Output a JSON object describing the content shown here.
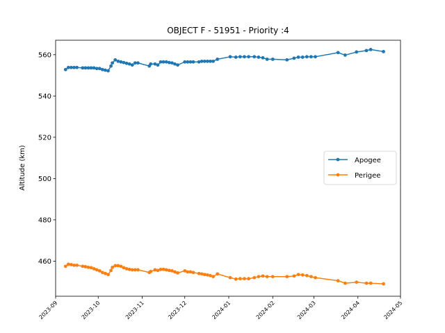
{
  "chart_data": {
    "type": "line",
    "title": "OBJECT F - 51951 - Priority :4",
    "xlabel": "",
    "ylabel": "Altitude (km)",
    "xlim": [
      "2023-09-01",
      "2024-05-01"
    ],
    "ylim": [
      443,
      567
    ],
    "x_ticks": [
      "2023-09",
      "2023-10",
      "2023-11",
      "2023-12",
      "2024-01",
      "2024-02",
      "2024-03",
      "2024-04",
      "2024-05"
    ],
    "y_ticks": [
      460,
      480,
      500,
      520,
      540,
      560
    ],
    "legend_position": "center-right",
    "grid": false,
    "series": [
      {
        "name": "Apogee",
        "color": "#1f77b4",
        "points": [
          [
            "2023-09-08",
            552.8
          ],
          [
            "2023-09-10",
            553.8
          ],
          [
            "2023-09-12",
            553.8
          ],
          [
            "2023-09-14",
            553.8
          ],
          [
            "2023-09-16",
            553.8
          ],
          [
            "2023-09-20",
            553.6
          ],
          [
            "2023-09-22",
            553.6
          ],
          [
            "2023-09-24",
            553.6
          ],
          [
            "2023-09-26",
            553.6
          ],
          [
            "2023-09-28",
            553.6
          ],
          [
            "2023-09-30",
            553.3
          ],
          [
            "2023-10-02",
            553.3
          ],
          [
            "2023-10-04",
            552.8
          ],
          [
            "2023-10-06",
            552.5
          ],
          [
            "2023-10-08",
            552.2
          ],
          [
            "2023-10-10",
            554.5
          ],
          [
            "2023-10-11",
            556.0
          ],
          [
            "2023-10-13",
            557.5
          ],
          [
            "2023-10-15",
            556.8
          ],
          [
            "2023-10-17",
            556.5
          ],
          [
            "2023-10-19",
            556.2
          ],
          [
            "2023-10-21",
            555.8
          ],
          [
            "2023-10-23",
            555.5
          ],
          [
            "2023-10-25",
            555.0
          ],
          [
            "2023-10-27",
            556.0
          ],
          [
            "2023-10-29",
            556.0
          ],
          [
            "2023-11-06",
            554.5
          ],
          [
            "2023-11-07",
            555.5
          ],
          [
            "2023-11-10",
            555.5
          ],
          [
            "2023-11-12",
            555.0
          ],
          [
            "2023-11-14",
            556.5
          ],
          [
            "2023-11-16",
            556.5
          ],
          [
            "2023-11-18",
            556.5
          ],
          [
            "2023-11-20",
            556.2
          ],
          [
            "2023-11-22",
            556.0
          ],
          [
            "2023-11-24",
            555.5
          ],
          [
            "2023-11-26",
            555.0
          ],
          [
            "2023-12-01",
            556.5
          ],
          [
            "2023-12-03",
            556.5
          ],
          [
            "2023-12-05",
            556.5
          ],
          [
            "2023-12-07",
            556.5
          ],
          [
            "2023-12-11",
            556.5
          ],
          [
            "2023-12-13",
            556.8
          ],
          [
            "2023-12-15",
            556.8
          ],
          [
            "2023-12-17",
            556.8
          ],
          [
            "2023-12-19",
            556.8
          ],
          [
            "2023-12-21",
            556.8
          ],
          [
            "2023-12-24",
            557.8
          ],
          [
            "2024-01-02",
            559.0
          ],
          [
            "2024-01-06",
            558.8
          ],
          [
            "2024-01-09",
            559.0
          ],
          [
            "2024-01-12",
            559.0
          ],
          [
            "2024-01-15",
            559.0
          ],
          [
            "2024-01-19",
            559.0
          ],
          [
            "2024-01-22",
            558.8
          ],
          [
            "2024-01-25",
            558.5
          ],
          [
            "2024-01-28",
            557.8
          ],
          [
            "2024-02-01",
            557.8
          ],
          [
            "2024-02-11",
            557.5
          ],
          [
            "2024-02-16",
            558.3
          ],
          [
            "2024-02-19",
            558.8
          ],
          [
            "2024-02-22",
            558.8
          ],
          [
            "2024-02-25",
            559.0
          ],
          [
            "2024-02-28",
            559.0
          ],
          [
            "2024-03-02",
            559.0
          ],
          [
            "2024-03-18",
            561.0
          ],
          [
            "2024-03-23",
            559.8
          ],
          [
            "2024-03-31",
            561.3
          ],
          [
            "2024-04-07",
            562.0
          ],
          [
            "2024-04-10",
            562.5
          ],
          [
            "2024-04-19",
            561.5
          ]
        ]
      },
      {
        "name": "Perigee",
        "color": "#ff7f0e",
        "points": [
          [
            "2023-09-08",
            457.5
          ],
          [
            "2023-09-10",
            458.5
          ],
          [
            "2023-09-12",
            458.3
          ],
          [
            "2023-09-14",
            458.0
          ],
          [
            "2023-09-16",
            458.0
          ],
          [
            "2023-09-20",
            457.5
          ],
          [
            "2023-09-22",
            457.3
          ],
          [
            "2023-09-24",
            457.0
          ],
          [
            "2023-09-26",
            456.8
          ],
          [
            "2023-09-28",
            456.3
          ],
          [
            "2023-09-30",
            455.8
          ],
          [
            "2023-10-02",
            455.3
          ],
          [
            "2023-10-04",
            454.5
          ],
          [
            "2023-10-06",
            454.0
          ],
          [
            "2023-10-08",
            453.5
          ],
          [
            "2023-10-10",
            455.5
          ],
          [
            "2023-10-11",
            457.0
          ],
          [
            "2023-10-13",
            457.8
          ],
          [
            "2023-10-15",
            457.8
          ],
          [
            "2023-10-17",
            457.5
          ],
          [
            "2023-10-19",
            456.8
          ],
          [
            "2023-10-21",
            456.3
          ],
          [
            "2023-10-23",
            456.0
          ],
          [
            "2023-10-25",
            455.8
          ],
          [
            "2023-10-27",
            455.8
          ],
          [
            "2023-10-29",
            455.8
          ],
          [
            "2023-11-06",
            454.5
          ],
          [
            "2023-11-07",
            455.0
          ],
          [
            "2023-11-10",
            455.8
          ],
          [
            "2023-11-12",
            455.5
          ],
          [
            "2023-11-14",
            456.0
          ],
          [
            "2023-11-16",
            456.0
          ],
          [
            "2023-11-18",
            455.8
          ],
          [
            "2023-11-20",
            455.5
          ],
          [
            "2023-11-22",
            455.3
          ],
          [
            "2023-11-24",
            454.8
          ],
          [
            "2023-11-26",
            454.3
          ],
          [
            "2023-12-01",
            455.3
          ],
          [
            "2023-12-03",
            454.8
          ],
          [
            "2023-12-05",
            454.8
          ],
          [
            "2023-12-07",
            454.5
          ],
          [
            "2023-12-11",
            454.0
          ],
          [
            "2023-12-13",
            453.8
          ],
          [
            "2023-12-15",
            453.5
          ],
          [
            "2023-12-17",
            453.3
          ],
          [
            "2023-12-19",
            453.0
          ],
          [
            "2023-12-21",
            452.5
          ],
          [
            "2023-12-24",
            453.8
          ],
          [
            "2024-01-02",
            452.0
          ],
          [
            "2024-01-06",
            451.3
          ],
          [
            "2024-01-09",
            451.5
          ],
          [
            "2024-01-12",
            451.5
          ],
          [
            "2024-01-15",
            451.5
          ],
          [
            "2024-01-19",
            452.0
          ],
          [
            "2024-01-22",
            452.5
          ],
          [
            "2024-01-25",
            452.8
          ],
          [
            "2024-01-28",
            452.5
          ],
          [
            "2024-02-01",
            452.5
          ],
          [
            "2024-02-11",
            452.5
          ],
          [
            "2024-02-16",
            452.8
          ],
          [
            "2024-02-19",
            453.5
          ],
          [
            "2024-02-22",
            453.3
          ],
          [
            "2024-02-25",
            453.0
          ],
          [
            "2024-02-28",
            452.5
          ],
          [
            "2024-03-02",
            452.0
          ],
          [
            "2024-03-18",
            450.5
          ],
          [
            "2024-03-23",
            449.3
          ],
          [
            "2024-03-31",
            449.8
          ],
          [
            "2024-04-07",
            449.3
          ],
          [
            "2024-04-10",
            449.3
          ],
          [
            "2024-04-19",
            449.0
          ]
        ]
      }
    ]
  }
}
